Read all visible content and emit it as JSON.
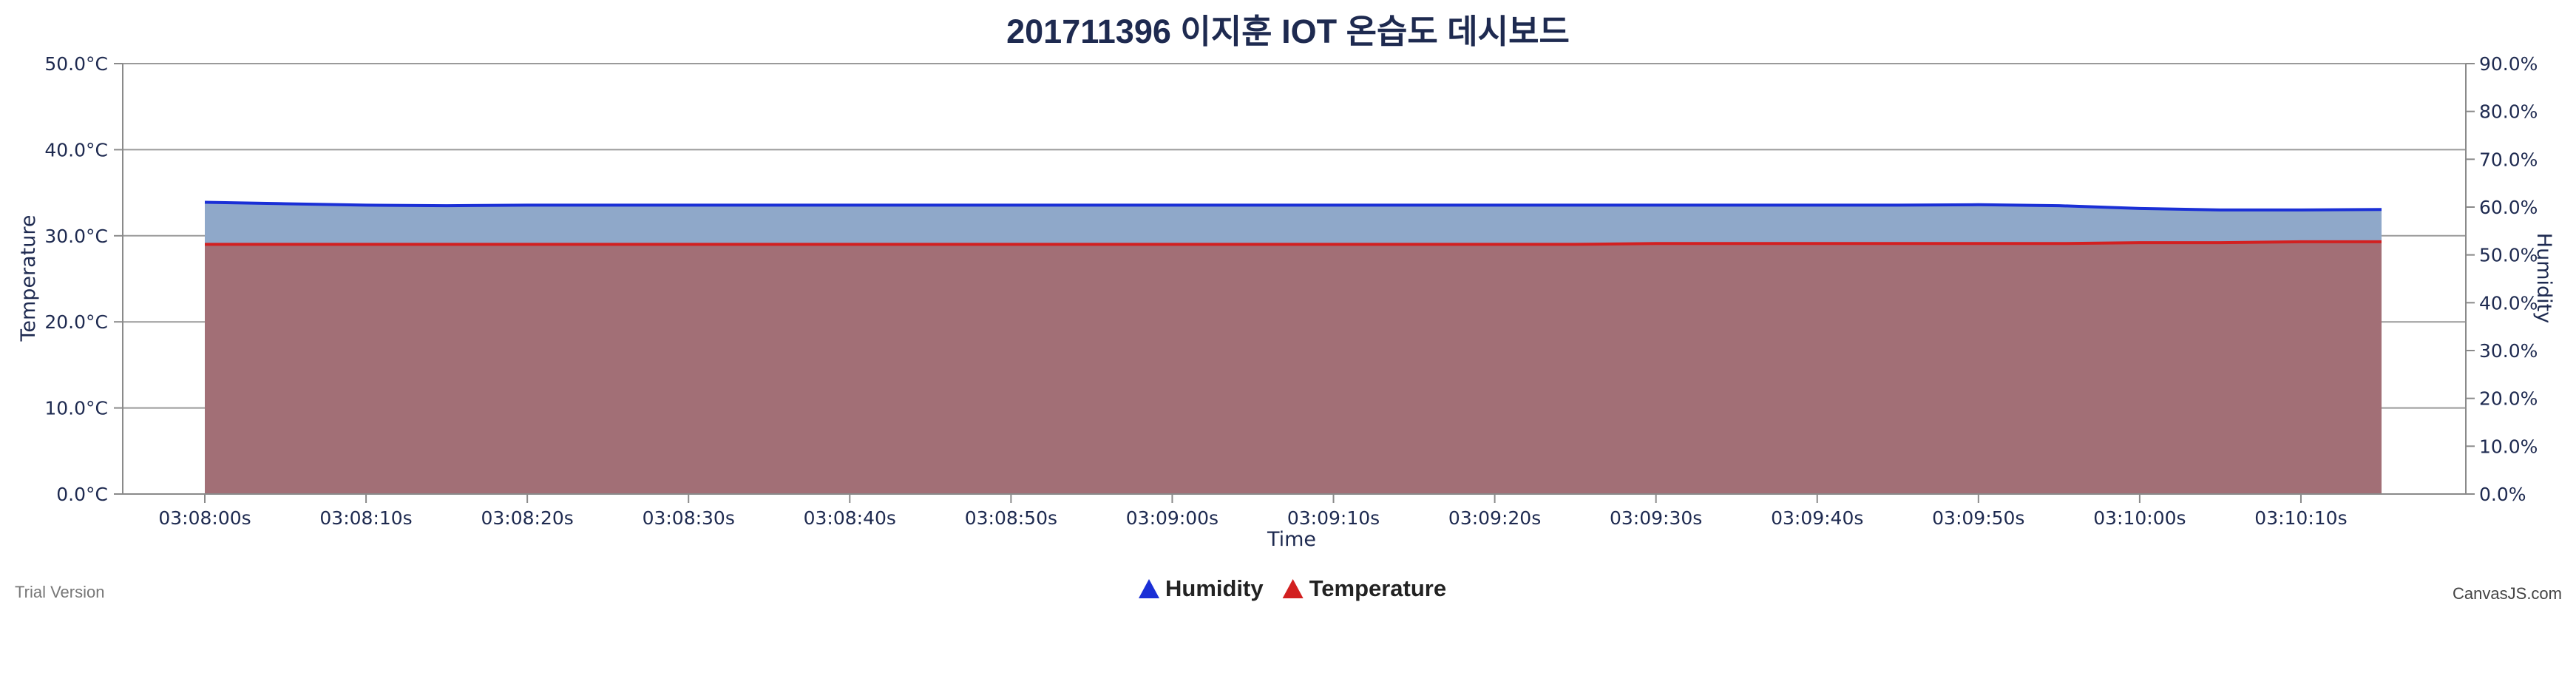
{
  "chart_data": {
    "type": "area",
    "title": "201711396 이지훈 IOT 온습도 데시보드",
    "xlabel": "Time",
    "ylabel": "Temperature",
    "y2label": "Humidity",
    "x": [
      "03:08:00",
      "03:08:05",
      "03:08:10",
      "03:08:15",
      "03:08:20",
      "03:08:25",
      "03:08:30",
      "03:08:35",
      "03:08:40",
      "03:08:45",
      "03:08:50",
      "03:08:55",
      "03:09:00",
      "03:09:05",
      "03:09:10",
      "03:09:15",
      "03:09:20",
      "03:09:25",
      "03:09:30",
      "03:09:35",
      "03:09:40",
      "03:09:45",
      "03:09:50",
      "03:09:55",
      "03:10:00",
      "03:10:05",
      "03:10:10",
      "03:10:15"
    ],
    "x_ticks": [
      "03:08:00s",
      "03:08:10s",
      "03:08:20s",
      "03:08:30s",
      "03:08:40s",
      "03:08:50s",
      "03:09:00s",
      "03:09:10s",
      "03:09:20s",
      "03:09:30s",
      "03:09:40s",
      "03:09:50s",
      "03:10:00s",
      "03:10:10s"
    ],
    "y_ticks": [
      "0.0°C",
      "10.0°C",
      "20.0°C",
      "30.0°C",
      "40.0°C",
      "50.0°C"
    ],
    "y2_ticks": [
      "0.0%",
      "10.0%",
      "20.0%",
      "30.0%",
      "40.0%",
      "50.0%",
      "60.0%",
      "70.0%",
      "80.0%",
      "90.0%"
    ],
    "ylim": [
      0,
      50
    ],
    "y2lim": [
      0,
      90
    ],
    "grid": true,
    "legend_position": "bottom-center",
    "series": [
      {
        "name": "Humidity",
        "axis": "right",
        "color": "#1a2fd6",
        "fill": "#8fa8c9",
        "values": [
          61.0,
          60.7,
          60.4,
          60.3,
          60.4,
          60.4,
          60.4,
          60.4,
          60.4,
          60.4,
          60.4,
          60.4,
          60.4,
          60.4,
          60.4,
          60.4,
          60.4,
          60.4,
          60.4,
          60.4,
          60.4,
          60.4,
          60.5,
          60.3,
          59.7,
          59.4,
          59.4,
          59.5
        ]
      },
      {
        "name": "Temperature",
        "axis": "left",
        "color": "#d22020",
        "fill": "#a26f76",
        "values": [
          29.0,
          29.0,
          29.0,
          29.0,
          29.0,
          29.0,
          29.0,
          29.0,
          29.0,
          29.0,
          29.0,
          29.0,
          29.0,
          29.0,
          29.0,
          29.0,
          29.0,
          29.0,
          29.1,
          29.1,
          29.1,
          29.1,
          29.1,
          29.1,
          29.2,
          29.2,
          29.3,
          29.3
        ]
      }
    ]
  },
  "footer": {
    "left": "Trial Version",
    "right": "CanvasJS.com"
  }
}
